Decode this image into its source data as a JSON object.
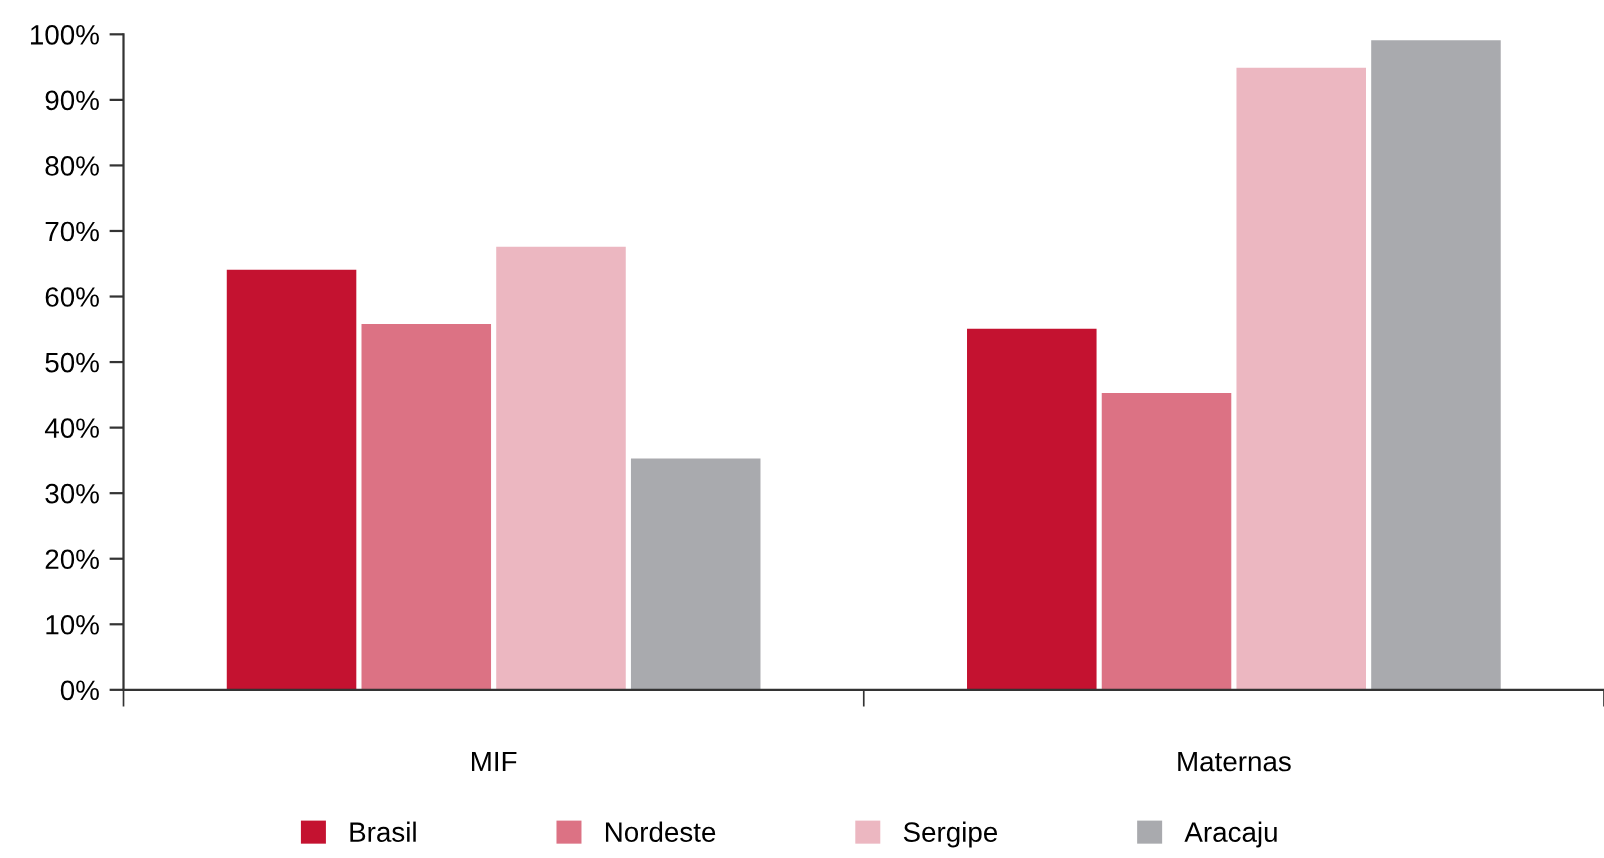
{
  "chart_data": {
    "type": "bar",
    "categories": [
      "MIF",
      "Maternas"
    ],
    "series": [
      {
        "name": "Brasil",
        "color": "#c41230",
        "values": [
          64.1,
          55.1
        ]
      },
      {
        "name": "Nordeste",
        "color": "#dc7284",
        "values": [
          55.8,
          45.3
        ]
      },
      {
        "name": "Sergipe",
        "color": "#ecb7c1",
        "values": [
          67.6,
          94.9
        ]
      },
      {
        "name": "Aracaju",
        "color": "#a9aaae",
        "values": [
          35.3,
          99.1
        ]
      }
    ],
    "ylim": [
      0,
      100
    ],
    "yticks": [
      {
        "value": 0,
        "label": "0%"
      },
      {
        "value": 10,
        "label": "10%"
      },
      {
        "value": 20,
        "label": "20%"
      },
      {
        "value": 30,
        "label": "30%"
      },
      {
        "value": 40,
        "label": "40%"
      },
      {
        "value": 50,
        "label": "50%"
      },
      {
        "value": 60,
        "label": "60%"
      },
      {
        "value": 70,
        "label": "70%"
      },
      {
        "value": 80,
        "label": "80%"
      },
      {
        "value": 90,
        "label": "90%"
      },
      {
        "value": 100,
        "label": "100%"
      }
    ],
    "grid": false,
    "legend": "bottom"
  }
}
